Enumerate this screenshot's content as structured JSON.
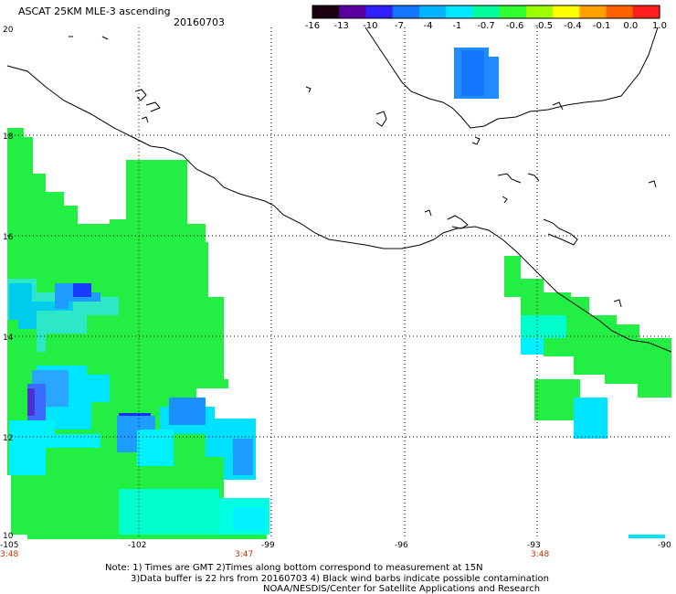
{
  "header": {
    "title": "ASCAT 25KM MLE-3 ascending",
    "date": "20160703"
  },
  "colorbar": {
    "labels": [
      "-16",
      "-13",
      "-10",
      "-7",
      "-4",
      "-1",
      "-0.7",
      "-0.6",
      "-0.5",
      "-0.4",
      "-0.1",
      "0.0",
      "1.0"
    ],
    "colors": [
      "#1a0010",
      "#5a00a0",
      "#3020ff",
      "#1478ff",
      "#00b4ff",
      "#00e8ff",
      "#00ff9c",
      "#30ff30",
      "#9cff00",
      "#ffff00",
      "#ffa000",
      "#ff6000",
      "#ff1e1e"
    ]
  },
  "axes": {
    "lat_ticks": [
      "20",
      "18",
      "16",
      "14",
      "12",
      "10"
    ],
    "lon_ticks": [
      "-105",
      "-102",
      "-99",
      "-96",
      "-93",
      "-90"
    ],
    "time_labels": [
      {
        "lon_index": 0,
        "text": "3:48"
      },
      {
        "lon_index": 2,
        "text": "3:47"
      },
      {
        "lon_index": 4,
        "text": "3:48"
      }
    ]
  },
  "notes": {
    "line1": "Note: 1) Times are GMT 2)Times along bottom correspond to measurement at 15N",
    "line2": "3)Data buffer is 22 hrs from 20160703 4) Black wind barbs indicate possible contamination",
    "line3": "NOAA/NESDIS/Center for Satellite Applications and Research"
  }
}
